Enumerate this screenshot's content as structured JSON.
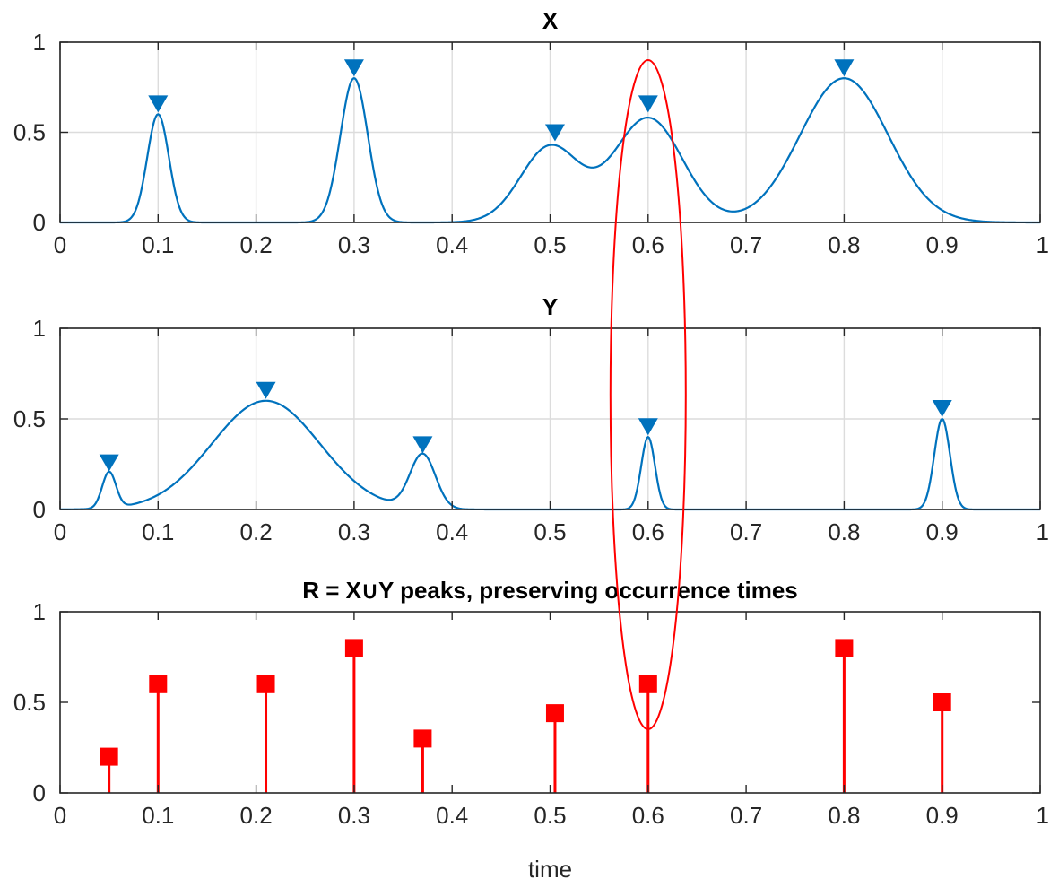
{
  "chart_data": [
    {
      "type": "line",
      "title": "X",
      "xlabel": "",
      "ylabel": "",
      "xlim": [
        0,
        1
      ],
      "ylim": [
        0,
        1
      ],
      "xticks": [
        "0",
        "0.1",
        "0.2",
        "0.3",
        "0.4",
        "0.5",
        "0.6",
        "0.7",
        "0.8",
        "0.9",
        "1"
      ],
      "yticks": [
        "0",
        "0.5",
        "1"
      ],
      "grid": true,
      "line_color": "#0072BD",
      "components": [
        {
          "center": 0.1,
          "amplitude": 0.6,
          "width": 0.011
        },
        {
          "center": 0.3,
          "amplitude": 0.8,
          "width": 0.014
        },
        {
          "center": 0.5,
          "amplitude": 0.42,
          "width": 0.03
        },
        {
          "center": 0.6,
          "amplitude": 0.58,
          "width": 0.035
        },
        {
          "center": 0.8,
          "amplitude": 0.8,
          "width": 0.045
        }
      ],
      "peaks": [
        {
          "x": 0.1,
          "y": 0.6
        },
        {
          "x": 0.3,
          "y": 0.8
        },
        {
          "x": 0.505,
          "y": 0.44
        },
        {
          "x": 0.6,
          "y": 0.6
        },
        {
          "x": 0.8,
          "y": 0.8
        }
      ]
    },
    {
      "type": "line",
      "title": "Y",
      "xlabel": "",
      "ylabel": "",
      "xlim": [
        0,
        1
      ],
      "ylim": [
        0,
        1
      ],
      "xticks": [
        "0",
        "0.1",
        "0.2",
        "0.3",
        "0.4",
        "0.5",
        "0.6",
        "0.7",
        "0.8",
        "0.9",
        "1"
      ],
      "yticks": [
        "0",
        "0.5",
        "1"
      ],
      "grid": true,
      "line_color": "#0072BD",
      "components": [
        {
          "center": 0.05,
          "amplitude": 0.2,
          "width": 0.007
        },
        {
          "center": 0.21,
          "amplitude": 0.6,
          "width": 0.055
        },
        {
          "center": 0.37,
          "amplitude": 0.3,
          "width": 0.013
        },
        {
          "center": 0.6,
          "amplitude": 0.4,
          "width": 0.007
        },
        {
          "center": 0.9,
          "amplitude": 0.5,
          "width": 0.008
        }
      ],
      "peaks": [
        {
          "x": 0.05,
          "y": 0.2
        },
        {
          "x": 0.21,
          "y": 0.6
        },
        {
          "x": 0.37,
          "y": 0.3
        },
        {
          "x": 0.6,
          "y": 0.4
        },
        {
          "x": 0.9,
          "y": 0.5
        }
      ]
    },
    {
      "type": "stem",
      "title": "R = X∪Y peaks, preserving occurrence times",
      "xlabel": "time",
      "ylabel": "",
      "xlim": [
        0,
        1
      ],
      "ylim": [
        0,
        1
      ],
      "xticks": [
        "0",
        "0.1",
        "0.2",
        "0.3",
        "0.4",
        "0.5",
        "0.6",
        "0.7",
        "0.8",
        "0.9",
        "1"
      ],
      "yticks": [
        "0",
        "0.5",
        "1"
      ],
      "grid": false,
      "marker_color": "#FF0000",
      "points": [
        {
          "x": 0.05,
          "y": 0.2
        },
        {
          "x": 0.1,
          "y": 0.6
        },
        {
          "x": 0.21,
          "y": 0.6
        },
        {
          "x": 0.3,
          "y": 0.8
        },
        {
          "x": 0.37,
          "y": 0.3
        },
        {
          "x": 0.505,
          "y": 0.44
        },
        {
          "x": 0.6,
          "y": 0.6
        },
        {
          "x": 0.8,
          "y": 0.8
        },
        {
          "x": 0.9,
          "y": 0.5
        }
      ]
    }
  ],
  "annotation": {
    "shape": "ellipse",
    "color": "#FF0000",
    "x_center": 0.6
  }
}
